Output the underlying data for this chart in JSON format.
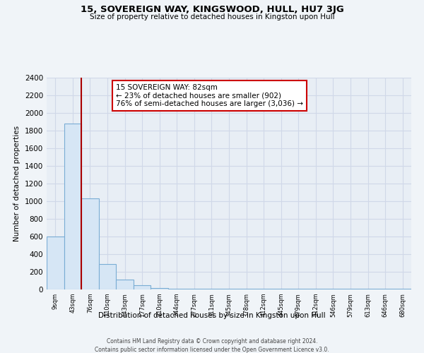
{
  "title": "15, SOVEREIGN WAY, KINGSWOOD, HULL, HU7 3JG",
  "subtitle": "Size of property relative to detached houses in Kingston upon Hull",
  "bar_labels": [
    "9sqm",
    "43sqm",
    "76sqm",
    "110sqm",
    "143sqm",
    "177sqm",
    "210sqm",
    "244sqm",
    "277sqm",
    "311sqm",
    "345sqm",
    "378sqm",
    "412sqm",
    "445sqm",
    "479sqm",
    "512sqm",
    "546sqm",
    "579sqm",
    "613sqm",
    "646sqm",
    "680sqm"
  ],
  "bar_values": [
    600,
    1880,
    1030,
    290,
    110,
    45,
    20,
    5,
    5,
    5,
    5,
    5,
    5,
    5,
    5,
    5,
    5,
    5,
    5,
    5,
    5
  ],
  "bar_color": "#d6e6f5",
  "bar_edge_color": "#7aadd4",
  "vline_bar_index": 2,
  "ylabel": "Number of detached properties",
  "xlabel": "Distribution of detached houses by size in Kingston upon Hull",
  "ylim": [
    0,
    2400
  ],
  "yticks": [
    0,
    200,
    400,
    600,
    800,
    1000,
    1200,
    1400,
    1600,
    1800,
    2000,
    2200,
    2400
  ],
  "annotation_title": "15 SOVEREIGN WAY: 82sqm",
  "annotation_line1": "← 23% of detached houses are smaller (902)",
  "annotation_line2": "76% of semi-detached houses are larger (3,036) →",
  "vline_color": "#aa0000",
  "annotation_box_color": "#ffffff",
  "annotation_box_edge": "#cc0000",
  "footer1": "Contains HM Land Registry data © Crown copyright and database right 2024.",
  "footer2": "Contains public sector information licensed under the Open Government Licence v3.0.",
  "bg_color": "#f0f4f8",
  "grid_color": "#d0d8e8",
  "plot_bg_color": "#e8eef5"
}
